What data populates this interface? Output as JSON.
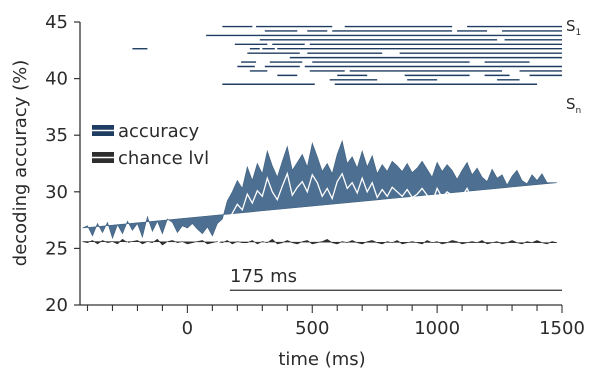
{
  "chart_data": {
    "type": "line",
    "title": "",
    "xlabel": "time (ms)",
    "ylabel": "decoding accuracy (%)",
    "xlim": [
      -430,
      1500
    ],
    "ylim": [
      20,
      45
    ],
    "xticks": [
      0,
      500,
      1000,
      1500
    ],
    "yticks": [
      20,
      25,
      30,
      35,
      40,
      45
    ],
    "grid": false,
    "legend": {
      "placement": "center-left",
      "entries": [
        "accuracy",
        "chance lvl"
      ]
    },
    "colors": {
      "accuracy_band": "#4d6f91",
      "accuracy_edge": "#3f607f",
      "accuracy_line": "#ffffff",
      "chance": "#2e2e2e",
      "axis": "#333333",
      "bars": "#1f3d63"
    },
    "x": [
      -420,
      -400,
      -380,
      -360,
      -340,
      -320,
      -300,
      -280,
      -260,
      -240,
      -220,
      -200,
      -180,
      -160,
      -140,
      -120,
      -100,
      -80,
      -60,
      -40,
      -20,
      0,
      20,
      40,
      60,
      80,
      100,
      120,
      140,
      160,
      180,
      200,
      220,
      240,
      260,
      280,
      300,
      320,
      340,
      360,
      380,
      400,
      420,
      440,
      460,
      480,
      500,
      520,
      540,
      560,
      580,
      600,
      620,
      640,
      660,
      680,
      700,
      720,
      740,
      760,
      780,
      800,
      820,
      840,
      860,
      880,
      900,
      920,
      940,
      960,
      980,
      1000,
      1020,
      1040,
      1060,
      1080,
      1100,
      1120,
      1140,
      1160,
      1180,
      1200,
      1220,
      1240,
      1260,
      1280,
      1300,
      1320,
      1340,
      1360,
      1380,
      1400,
      1420,
      1440,
      1460,
      1480,
      1500
    ],
    "series": [
      {
        "name": "accuracy",
        "mean": [
          25.0,
          25.3,
          24.6,
          25.1,
          24.8,
          25.4,
          24.3,
          25.2,
          24.6,
          25.5,
          24.9,
          25.2,
          24.5,
          25.4,
          24.8,
          25.3,
          24.6,
          25.5,
          25.1,
          24.7,
          25.2,
          25.0,
          25.3,
          24.9,
          24.6,
          25.2,
          24.4,
          25.5,
          25.8,
          27.3,
          28.1,
          28.9,
          28.4,
          29.8,
          29.0,
          30.1,
          29.6,
          31.2,
          30.0,
          29.3,
          30.5,
          31.6,
          29.7,
          30.4,
          30.9,
          30.0,
          31.5,
          30.8,
          29.6,
          30.3,
          29.4,
          30.9,
          31.6,
          30.3,
          30.8,
          29.9,
          31.2,
          30.0,
          30.8,
          29.5,
          30.2,
          29.6,
          30.4,
          30.0,
          29.6,
          30.2,
          29.5,
          29.8,
          30.3,
          29.7,
          29.0,
          30.3,
          29.5,
          30.0,
          29.7,
          28.9,
          29.6,
          30.3,
          29.3,
          29.8,
          29.0,
          28.6,
          29.7,
          28.9,
          29.3,
          28.3,
          29.1,
          29.6,
          28.8,
          28.4,
          29.3,
          28.7,
          29.3,
          28.5,
          28.8,
          28.9
        ],
        "upper": [
          26.8,
          27.0,
          26.1,
          27.2,
          26.4,
          27.3,
          25.9,
          27.1,
          26.3,
          27.4,
          26.6,
          27.2,
          26.0,
          27.8,
          26.5,
          27.4,
          26.3,
          27.6,
          27.3,
          26.4,
          27.0,
          26.8,
          27.2,
          26.7,
          26.3,
          26.9,
          26.1,
          27.2,
          27.6,
          29.2,
          30.0,
          31.0,
          30.3,
          32.2,
          31.0,
          32.5,
          31.6,
          33.6,
          32.3,
          31.3,
          32.7,
          34.0,
          31.9,
          32.6,
          33.3,
          32.2,
          34.3,
          33.1,
          31.8,
          32.5,
          31.6,
          33.3,
          34.5,
          32.5,
          33.1,
          32.1,
          33.6,
          32.2,
          33.2,
          31.6,
          32.4,
          31.8,
          32.7,
          32.3,
          31.8,
          32.5,
          31.7,
          32.1,
          32.7,
          32.0,
          31.3,
          32.6,
          31.8,
          32.4,
          31.9,
          31.1,
          31.9,
          32.6,
          31.5,
          32.1,
          31.3,
          30.9,
          32.0,
          31.2,
          31.5,
          30.6,
          31.4,
          31.9,
          31.0,
          30.7,
          31.5,
          31.0,
          31.6,
          30.8,
          30.8,
          30.8
        ],
        "lower": [
          23.6,
          23.8,
          23.1,
          23.4,
          23.2,
          23.7,
          22.8,
          23.5,
          23.0,
          23.8,
          23.2,
          23.5,
          22.9,
          23.6,
          23.1,
          23.5,
          23.0,
          23.7,
          23.3,
          23.0,
          23.5,
          23.2,
          23.6,
          23.2,
          22.9,
          23.5,
          22.8,
          23.8,
          24.0,
          25.5,
          26.2,
          26.9,
          26.5,
          27.6,
          27.0,
          28.0,
          27.6,
          29.0,
          27.9,
          27.3,
          28.4,
          29.4,
          27.6,
          28.3,
          28.7,
          27.9,
          29.2,
          28.6,
          27.5,
          28.2,
          27.3,
          28.6,
          29.0,
          28.2,
          28.6,
          27.8,
          29.0,
          27.9,
          28.6,
          27.5,
          28.1,
          27.5,
          28.2,
          27.8,
          27.5,
          28.0,
          27.4,
          27.6,
          28.0,
          27.5,
          26.9,
          28.1,
          27.3,
          27.8,
          27.6,
          26.8,
          27.4,
          28.1,
          27.2,
          27.6,
          26.9,
          26.5,
          27.5,
          26.8,
          27.2,
          26.3,
          27.0,
          27.4,
          26.7,
          26.3,
          27.2,
          26.6,
          27.1,
          26.3,
          26.7,
          26.8
        ]
      },
      {
        "name": "chance lvl",
        "mean": [
          25.1,
          25.0,
          25.2,
          24.9,
          25.2,
          25.0,
          25.1,
          24.9,
          25.3,
          25.0,
          25.1,
          25.2,
          24.9,
          25.1,
          25.0,
          25.3,
          24.8,
          25.1,
          25.2,
          25.0,
          25.1,
          24.9,
          25.0,
          25.1,
          25.2,
          24.9,
          25.0,
          25.1,
          25.0,
          25.2,
          24.9,
          25.1,
          25.0,
          25.0,
          25.2,
          24.9,
          25.1,
          25.0,
          25.3,
          24.9,
          25.0,
          25.2,
          25.0,
          24.9,
          25.1,
          25.2,
          24.9,
          25.0,
          25.1,
          25.3,
          25.0,
          24.9,
          25.1,
          25.0,
          25.2,
          25.0,
          24.9,
          25.1,
          25.2,
          25.0,
          24.9,
          25.1,
          25.0,
          25.2,
          24.9,
          25.0,
          25.1,
          25.0,
          24.9,
          25.2,
          25.0,
          25.1,
          24.9,
          25.0,
          25.2,
          25.1,
          24.9,
          25.0,
          25.1,
          25.0,
          25.2,
          24.9,
          25.0,
          25.1,
          24.9,
          25.0,
          25.2,
          25.0,
          24.9,
          25.1,
          25.0,
          25.2,
          25.0,
          24.9,
          25.1,
          25.0
        ],
        "upper": [
          25.6,
          25.5,
          25.7,
          25.4,
          25.7,
          25.5,
          25.6,
          25.4,
          25.8,
          25.5,
          25.6,
          25.7,
          25.4,
          25.6,
          25.5,
          25.8,
          25.3,
          25.6,
          25.7,
          25.5,
          25.6,
          25.4,
          25.5,
          25.6,
          25.7,
          25.4,
          25.5,
          25.6,
          25.5,
          25.7,
          25.4,
          25.6,
          25.5,
          25.5,
          25.7,
          25.4,
          25.6,
          25.5,
          25.8,
          25.4,
          25.5,
          25.7,
          25.5,
          25.4,
          25.6,
          25.7,
          25.4,
          25.5,
          25.6,
          25.8,
          25.5,
          25.4,
          25.6,
          25.5,
          25.7,
          25.5,
          25.4,
          25.6,
          25.7,
          25.5,
          25.4,
          25.6,
          25.5,
          25.7,
          25.4,
          25.5,
          25.6,
          25.5,
          25.4,
          25.7,
          25.5,
          25.6,
          25.4,
          25.5,
          25.7,
          25.6,
          25.4,
          25.5,
          25.6,
          25.5,
          25.7,
          25.4,
          25.5,
          25.6,
          25.4,
          25.5,
          25.7,
          25.5,
          25.4,
          25.6,
          25.5,
          25.7,
          25.5,
          25.4,
          25.6,
          25.5
        ],
        "lower": [
          24.5,
          24.4,
          24.6,
          24.3,
          24.6,
          24.4,
          24.5,
          24.3,
          24.7,
          24.4,
          24.5,
          24.6,
          24.3,
          24.5,
          24.4,
          24.7,
          24.2,
          24.5,
          24.6,
          24.4,
          24.5,
          24.3,
          24.4,
          24.5,
          24.6,
          24.3,
          24.4,
          24.5,
          24.4,
          24.6,
          24.3,
          24.5,
          24.4,
          24.4,
          24.6,
          24.3,
          24.5,
          24.4,
          24.7,
          24.3,
          24.4,
          24.6,
          24.4,
          24.3,
          24.5,
          24.6,
          24.3,
          24.4,
          24.5,
          24.7,
          24.4,
          24.3,
          24.5,
          24.4,
          24.6,
          24.4,
          24.3,
          24.5,
          24.6,
          24.4,
          24.3,
          24.5,
          24.4,
          24.6,
          24.3,
          24.4,
          24.5,
          24.4,
          24.3,
          24.6,
          24.4,
          24.5,
          24.3,
          24.4,
          24.6,
          24.5,
          24.3,
          24.4,
          24.5,
          24.4,
          24.6,
          24.3,
          24.4,
          24.5,
          24.3,
          24.4,
          24.6,
          24.4,
          24.3,
          24.5,
          24.4,
          24.6,
          24.4,
          24.3,
          24.5,
          24.4
        ]
      }
    ],
    "annotation": {
      "text": "175 ms",
      "x_start": 170,
      "x_end": 1500,
      "y": 21.3
    },
    "significance": {
      "label_first": "S",
      "label_first_sub": "1",
      "label_last": "S",
      "label_last_sub": "n",
      "y_first": 44.6,
      "y_last": 39.5,
      "rows": [
        [
          [
            140,
            260
          ],
          [
            275,
            580
          ],
          [
            630,
            1060
          ],
          [
            1120,
            1500
          ]
        ],
        [
          [
            310,
            440
          ],
          [
            480,
            560
          ],
          [
            580,
            1060
          ],
          [
            1080,
            1200
          ],
          [
            1260,
            1500
          ]
        ],
        [
          [
            75,
            1500
          ]
        ],
        [
          [
            290,
            1240
          ],
          [
            1270,
            1500
          ]
        ],
        [
          [
            190,
            320
          ],
          [
            340,
            470
          ],
          [
            490,
            1500
          ]
        ],
        [
          [
            -220,
            -160
          ],
          [
            250,
            290
          ],
          [
            300,
            350
          ],
          [
            360,
            1500
          ]
        ],
        [
          [
            240,
            450
          ],
          [
            480,
            780
          ],
          [
            850,
            1500
          ]
        ],
        [
          [
            410,
            1500
          ]
        ],
        [
          [
            215,
            275
          ],
          [
            330,
            460
          ],
          [
            500,
            1130
          ],
          [
            1190,
            1370
          ]
        ],
        [
          [
            200,
            270
          ],
          [
            310,
            450
          ],
          [
            470,
            1500
          ]
        ],
        [
          [
            250,
            320
          ],
          [
            490,
            630
          ],
          [
            650,
            1260
          ],
          [
            1330,
            1500
          ]
        ],
        [
          [
            360,
            440
          ],
          [
            600,
            720
          ],
          [
            870,
            1130
          ],
          [
            1190,
            1290
          ],
          [
            1370,
            1500
          ]
        ],
        [
          [
            570,
            760
          ],
          [
            880,
            1000
          ],
          [
            1240,
            1330
          ]
        ],
        [
          [
            140,
            510
          ],
          [
            590,
            1400
          ]
        ]
      ]
    }
  }
}
